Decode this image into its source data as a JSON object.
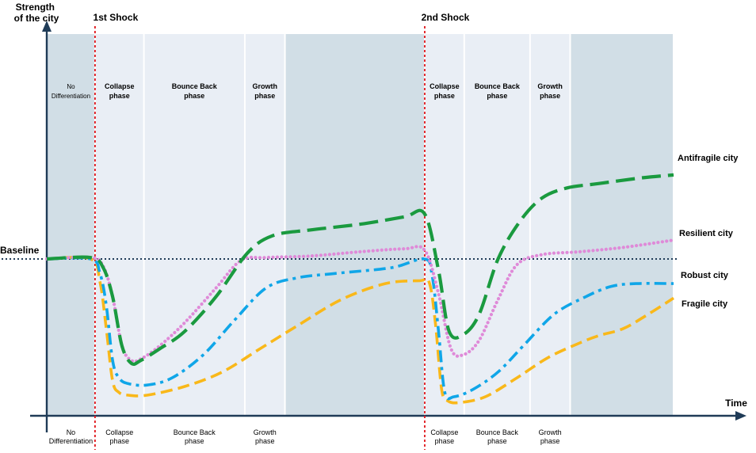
{
  "chart_data": {
    "type": "line",
    "ylabel_lines": [
      "Strength",
      "of the city"
    ],
    "xlabel": "Time",
    "baseline_label": "Baseline",
    "baseline_value": 50,
    "xlim": [
      0,
      100
    ],
    "ylim": [
      0,
      100
    ],
    "shocks": [
      {
        "label": "1st Shock",
        "x": 7.7
      },
      {
        "label": "2nd Shock",
        "x": 60.3
      }
    ],
    "phases": [
      {
        "top_lines": [
          "No",
          "Differentiation"
        ],
        "bottom_lines": [
          "No",
          "Differentiation"
        ],
        "x": [
          0,
          7.7
        ],
        "shade": "dark"
      },
      {
        "top_lines": [
          "Collapse",
          "phase"
        ],
        "bottom_lines": [
          "Collapse",
          "phase"
        ],
        "x": [
          7.7,
          15.5
        ],
        "shade": "light"
      },
      {
        "top_lines": [
          "Bounce Back",
          "phase"
        ],
        "bottom_lines": [
          "Bounce Back",
          "phase"
        ],
        "x": [
          15.5,
          31.6
        ],
        "shade": "light"
      },
      {
        "top_lines": [
          "Growth",
          "phase"
        ],
        "bottom_lines": [
          "Growth",
          "phase"
        ],
        "x": [
          31.6,
          38.0
        ],
        "shade": "light"
      },
      {
        "top_lines": [],
        "bottom_lines": [],
        "x": [
          38.0,
          60.3
        ],
        "shade": "dark"
      },
      {
        "top_lines": [
          "Collapse",
          "phase"
        ],
        "bottom_lines": [
          "Collapse",
          "phase"
        ],
        "x": [
          60.3,
          66.6
        ],
        "shade": "light"
      },
      {
        "top_lines": [
          "Bounce Back",
          "phase"
        ],
        "bottom_lines": [
          "Bounce Back",
          "phase"
        ],
        "x": [
          66.6,
          77.1
        ],
        "shade": "light"
      },
      {
        "top_lines": [
          "Growth",
          "phase"
        ],
        "bottom_lines": [
          "Growth",
          "phase"
        ],
        "x": [
          77.1,
          83.5
        ],
        "shade": "light"
      },
      {
        "top_lines": [],
        "bottom_lines": [],
        "x": [
          83.5,
          100
        ],
        "shade": "dark"
      }
    ],
    "series": [
      {
        "name": "Antifragile city",
        "color": "#1a9a3f",
        "style": "long-dash",
        "x": [
          0,
          7,
          9,
          10.5,
          12,
          13.5,
          15,
          18,
          22,
          27,
          32,
          36,
          42,
          50,
          57,
          60.3,
          62.5,
          64.2,
          66.5,
          69,
          72,
          75.5,
          79,
          83,
          88,
          95,
          100
        ],
        "y": [
          50,
          50.5,
          47,
          37,
          20,
          14,
          15,
          19,
          25,
          37,
          52,
          58,
          60,
          62,
          64.5,
          65.5,
          46,
          25,
          24,
          31,
          50,
          63,
          71,
          74.5,
          76,
          78,
          79
        ]
      },
      {
        "name": "Resilient city",
        "color": "#df8ad8",
        "style": "dotted",
        "x": [
          0,
          7,
          9,
          10.5,
          12,
          13.5,
          15,
          18,
          22,
          27,
          31,
          35,
          42,
          50,
          57,
          60.3,
          62.5,
          64.5,
          66.5,
          69,
          72,
          75,
          79,
          85,
          92,
          100
        ],
        "y": [
          50,
          50.5,
          47.5,
          37,
          20,
          15,
          15.5,
          20,
          28,
          40,
          49.5,
          50.5,
          51,
          52.5,
          53.5,
          53,
          38,
          19,
          17,
          22,
          36,
          48,
          51.5,
          52.5,
          54,
          56.5
        ]
      },
      {
        "name": "Robust city",
        "color": "#10a6e8",
        "style": "dash-dot",
        "x": [
          0,
          7,
          8.5,
          9.5,
          10.5,
          11.5,
          13,
          16,
          20,
          25,
          30,
          35,
          40,
          46,
          55,
          60.3,
          61.5,
          62.5,
          63.5,
          65,
          68,
          72,
          76,
          81,
          86,
          90,
          94,
          100
        ],
        "y": [
          50,
          50,
          45,
          34,
          15,
          9,
          7,
          6.5,
          9,
          17,
          29,
          40,
          43.5,
          45,
          47,
          50,
          44,
          25,
          4,
          2.5,
          5,
          11,
          20,
          31,
          37,
          40.5,
          41.5,
          41.5
        ]
      },
      {
        "name": "Fragile city",
        "color": "#f9b81a",
        "style": "dashed",
        "x": [
          0,
          7,
          8.5,
          9.5,
          10.5,
          11.5,
          13,
          16,
          22,
          28,
          34,
          40,
          47,
          54,
          59.5,
          61,
          62,
          63,
          64,
          66,
          70,
          75,
          80,
          85,
          88,
          92,
          96,
          100
        ],
        "y": [
          50,
          50,
          42,
          26,
          8,
          4,
          3,
          3,
          6,
          11,
          19,
          27,
          36,
          41.5,
          42.5,
          42,
          28,
          5,
          1,
          0.5,
          2.5,
          9,
          16,
          21,
          23.5,
          26,
          31,
          36.5
        ]
      }
    ]
  }
}
